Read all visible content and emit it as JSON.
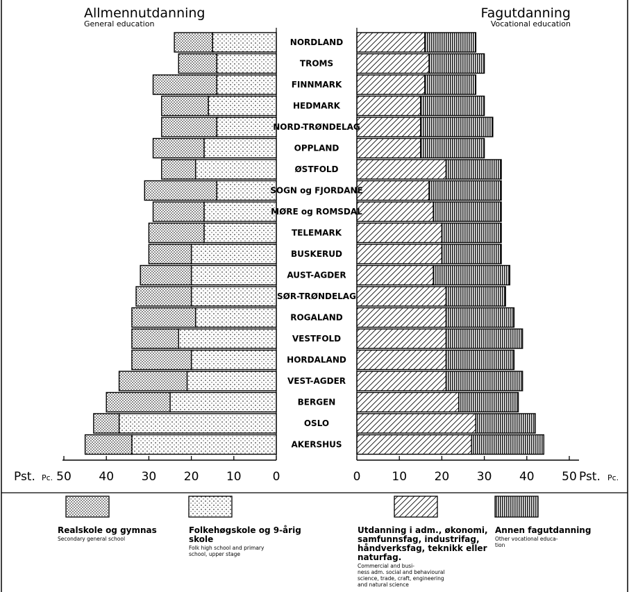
{
  "chart_data": [
    {
      "type": "bar",
      "title": "Allmennutdanning",
      "subtitle": "General education",
      "orientation": "horizontal-stacked",
      "direction": "right-to-left",
      "categories": [
        "NORDLAND",
        "TROMS",
        "FINNMARK",
        "HEDMARK",
        "NORD-TRØNDELAG",
        "OPPLAND",
        "ØSTFOLD",
        "SOGN og FJORDANE",
        "MØRE og ROMSDAL",
        "TELEMARK",
        "BUSKERUD",
        "AUST-AGDER",
        "SØR-TRØNDELAG",
        "ROGALAND",
        "VESTFOLD",
        "HORDALAND",
        "VEST-AGDER",
        "BERGEN",
        "OSLO",
        "AKERSHUS"
      ],
      "series": [
        {
          "name": "Folkehøgskole og 9-årig skole",
          "values": [
            15,
            14,
            14,
            16,
            14,
            17,
            19,
            14,
            17,
            17,
            20,
            20,
            20,
            19,
            23,
            20,
            21,
            25,
            37,
            34
          ]
        },
        {
          "name": "Realskole og gymnas",
          "values": [
            9,
            9,
            15,
            11,
            13,
            12,
            8,
            17,
            12,
            13,
            10,
            12,
            13,
            15,
            11,
            14,
            16,
            15,
            6,
            11
          ]
        }
      ],
      "axis": {
        "label": "Pst. Pc.",
        "ticks": [
          "50",
          "40",
          "30",
          "20",
          "10",
          "0"
        ],
        "range": [
          0,
          50
        ]
      }
    },
    {
      "type": "bar",
      "title": "Fagutdanning",
      "subtitle": "Vocational education",
      "orientation": "horizontal-stacked",
      "direction": "left-to-right",
      "categories": [
        "NORDLAND",
        "TROMS",
        "FINNMARK",
        "HEDMARK",
        "NORD-TRØNDELAG",
        "OPPLAND",
        "ØSTFOLD",
        "SOGN og FJORDANE",
        "MØRE og ROMSDAL",
        "TELEMARK",
        "BUSKERUD",
        "AUST-AGDER",
        "SØR-TRØNDELAG",
        "ROGALAND",
        "VESTFOLD",
        "HORDALAND",
        "VEST-AGDER",
        "BERGEN",
        "OSLO",
        "AKERSHUS"
      ],
      "series": [
        {
          "name": "Utdanning i adm., økonomi, samfunnsfag, industrifag, håndverksfag, teknikk eller naturfag",
          "values": [
            16,
            17,
            16,
            15,
            15,
            15,
            21,
            17,
            18,
            20,
            20,
            18,
            21,
            21,
            21,
            21,
            21,
            24,
            28,
            27
          ]
        },
        {
          "name": "Annen fagutdanning",
          "values": [
            12,
            13,
            12,
            15,
            17,
            15,
            13,
            17,
            16,
            14,
            14,
            18,
            14,
            16,
            18,
            16,
            18,
            14,
            14,
            17
          ]
        }
      ],
      "axis": {
        "label": "Pst. Pc.",
        "ticks": [
          "0",
          "10",
          "20",
          "30",
          "40",
          "50"
        ],
        "range": [
          0,
          50
        ]
      }
    }
  ],
  "labels": {
    "left_title": "Allmennutdanning",
    "left_subtitle": "General education",
    "right_title": "Fagutdanning",
    "right_subtitle": "Vocational education",
    "axis_unit_left_a": "Pst.",
    "axis_unit_left_b": "Pc.",
    "axis_unit_right_a": "Pst.",
    "axis_unit_right_b": "Pc."
  },
  "legend": [
    {
      "main": [
        "Realskole og gymnas"
      ],
      "sub": [
        "Secondary general school"
      ],
      "pattern": "dots-dense"
    },
    {
      "main": [
        "Folkehøgskole og 9-årig",
        "skole"
      ],
      "sub": [
        "Folk high school and primary",
        "school, upper stage"
      ],
      "pattern": "dots-sparse"
    },
    {
      "main": [
        "Utdanning i adm., økonomi,",
        "samfunnsfag, industrifag,",
        "håndverksfag, teknikk eller",
        "naturfag."
      ],
      "sub": [
        "Commercial and busi-",
        "ness adm. social and behavioural",
        "science, trade, craft, engineering",
        "and natural science"
      ],
      "pattern": "hatch"
    },
    {
      "main": [
        "Annen fagutdanning"
      ],
      "sub": [
        "Other vocational educa-",
        "tion"
      ],
      "pattern": "vertical"
    }
  ]
}
